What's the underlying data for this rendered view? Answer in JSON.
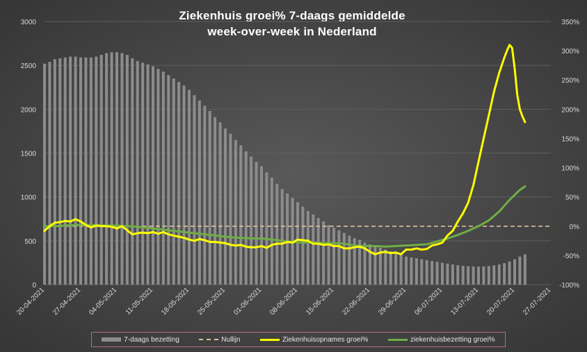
{
  "chart_data": {
    "type": "bar",
    "title_lines": [
      "Ziekenhuis groei% 7-daags gemiddelde",
      "week-over-week in Nederland"
    ],
    "x_tick_labels": [
      "20-04-2021",
      "27-04-2021",
      "04-05-2021",
      "11-05-2021",
      "18-05-2021",
      "25-05-2021",
      "01-06-2021",
      "08-06-2021",
      "15-06-2021",
      "22-06-2021",
      "29-06-2021",
      "06-07-2021",
      "13-07-2021",
      "20-07-2021",
      "27-07-2021"
    ],
    "y_left_ticks": [
      "0",
      "500",
      "1000",
      "1500",
      "2000",
      "2500",
      "3000"
    ],
    "y_right_ticks": [
      "-100%",
      "-50%",
      "0%",
      "50%",
      "100%",
      "150%",
      "200%",
      "250%",
      "300%",
      "350%"
    ],
    "ylim_left": [
      0,
      3000
    ],
    "ylim_right": [
      -100,
      350
    ],
    "x_start_day": 0,
    "x_end_day": 98,
    "grid": true,
    "legend_position": "bottom",
    "series": [
      {
        "name": "7-daags bezetting",
        "kind": "bar",
        "axis": "left",
        "color": "#8c8c8c",
        "values": [
          2520,
          2540,
          2570,
          2580,
          2590,
          2600,
          2600,
          2590,
          2590,
          2590,
          2600,
          2620,
          2640,
          2650,
          2650,
          2640,
          2620,
          2580,
          2550,
          2530,
          2510,
          2490,
          2460,
          2430,
          2390,
          2350,
          2310,
          2270,
          2220,
          2160,
          2100,
          2040,
          1980,
          1910,
          1850,
          1780,
          1720,
          1650,
          1590,
          1520,
          1460,
          1400,
          1350,
          1280,
          1220,
          1150,
          1090,
          1040,
          990,
          940,
          890,
          840,
          800,
          760,
          720,
          680,
          650,
          620,
          590,
          560,
          530,
          510,
          480,
          460,
          440,
          420,
          400,
          380,
          360,
          340,
          320,
          310,
          300,
          290,
          280,
          270,
          260,
          250,
          240,
          230,
          220,
          215,
          210,
          208,
          206,
          208,
          212,
          220,
          230,
          245,
          265,
          290,
          320,
          345
        ]
      },
      {
        "name": "Nullijn",
        "kind": "dashed",
        "axis": "right",
        "color": "#d8c49c",
        "value": 0
      },
      {
        "name": "Ziekenhuisopnames groei%",
        "kind": "line",
        "axis": "right",
        "color": "#ffff00",
        "x": [
          0,
          1,
          2,
          3,
          4,
          5,
          6,
          7,
          8,
          9,
          10,
          11,
          12,
          13,
          14,
          15,
          16,
          17,
          18,
          19,
          20,
          21,
          22,
          23,
          24,
          25,
          26,
          27,
          28,
          29,
          30,
          31,
          32,
          33,
          34,
          35,
          36,
          37,
          38,
          39,
          40,
          41,
          42,
          43,
          44,
          45,
          46,
          47,
          48,
          49,
          50,
          51,
          52,
          53,
          54,
          55,
          56,
          57,
          58,
          59,
          60,
          61,
          62,
          63,
          64,
          65,
          66,
          67,
          68,
          69,
          70,
          71,
          72,
          73,
          74,
          75,
          76,
          77,
          78,
          79,
          80,
          81,
          82,
          83,
          84,
          85,
          86,
          87,
          88,
          89,
          89.5,
          90,
          90.5,
          91,
          91.5,
          92,
          92.5,
          93
        ],
        "values": [
          -8,
          0,
          6,
          7,
          9,
          8,
          12,
          8,
          2,
          -2,
          1,
          0,
          0,
          -1,
          -4,
          0,
          -7,
          -14,
          -12,
          -11,
          -12,
          -10,
          -13,
          -10,
          -14,
          -16,
          -18,
          -20,
          -23,
          -25,
          -22,
          -24,
          -27,
          -27,
          -28,
          -29,
          -32,
          -33,
          -32,
          -35,
          -36,
          -36,
          -34,
          -37,
          -32,
          -30,
          -30,
          -27,
          -28,
          -23,
          -24,
          -25,
          -30,
          -30,
          -32,
          -31,
          -34,
          -34,
          -38,
          -38,
          -36,
          -35,
          -38,
          -44,
          -48,
          -45,
          -44,
          -46,
          -45,
          -48,
          -40,
          -40,
          -38,
          -40,
          -39,
          -33,
          -31,
          -28,
          -16,
          -8,
          8,
          22,
          40,
          70,
          110,
          150,
          190,
          230,
          262,
          288,
          300,
          310,
          305,
          270,
          225,
          200,
          188,
          178
        ]
      },
      {
        "name": "ziekenhuisbezetting groei%",
        "kind": "line",
        "axis": "right",
        "color": "#70ad47",
        "x": [
          0,
          2,
          4,
          6,
          8,
          10,
          12,
          14,
          16,
          18,
          20,
          22,
          24,
          26,
          28,
          30,
          32,
          34,
          36,
          38,
          40,
          42,
          44,
          46,
          48,
          50,
          52,
          54,
          56,
          58,
          60,
          62,
          64,
          66,
          68,
          70,
          72,
          74,
          76,
          78,
          80,
          82,
          84,
          86,
          88,
          90,
          92,
          93
        ],
        "values": [
          0,
          0,
          1,
          2,
          2,
          2,
          1,
          1,
          0,
          -1,
          -3,
          -5,
          -7,
          -9,
          -11,
          -13,
          -15,
          -17,
          -19,
          -20,
          -21,
          -21,
          -23,
          -25,
          -27,
          -28,
          -28,
          -29,
          -29,
          -30,
          -33,
          -34,
          -34,
          -35,
          -34,
          -33,
          -32,
          -31,
          -26,
          -21,
          -15,
          -8,
          0,
          10,
          25,
          45,
          62,
          68
        ]
      }
    ]
  },
  "colors": {
    "axis_text": "#d9d9d9",
    "grid": "#5f5f5f",
    "legend_border": "#b07080"
  }
}
